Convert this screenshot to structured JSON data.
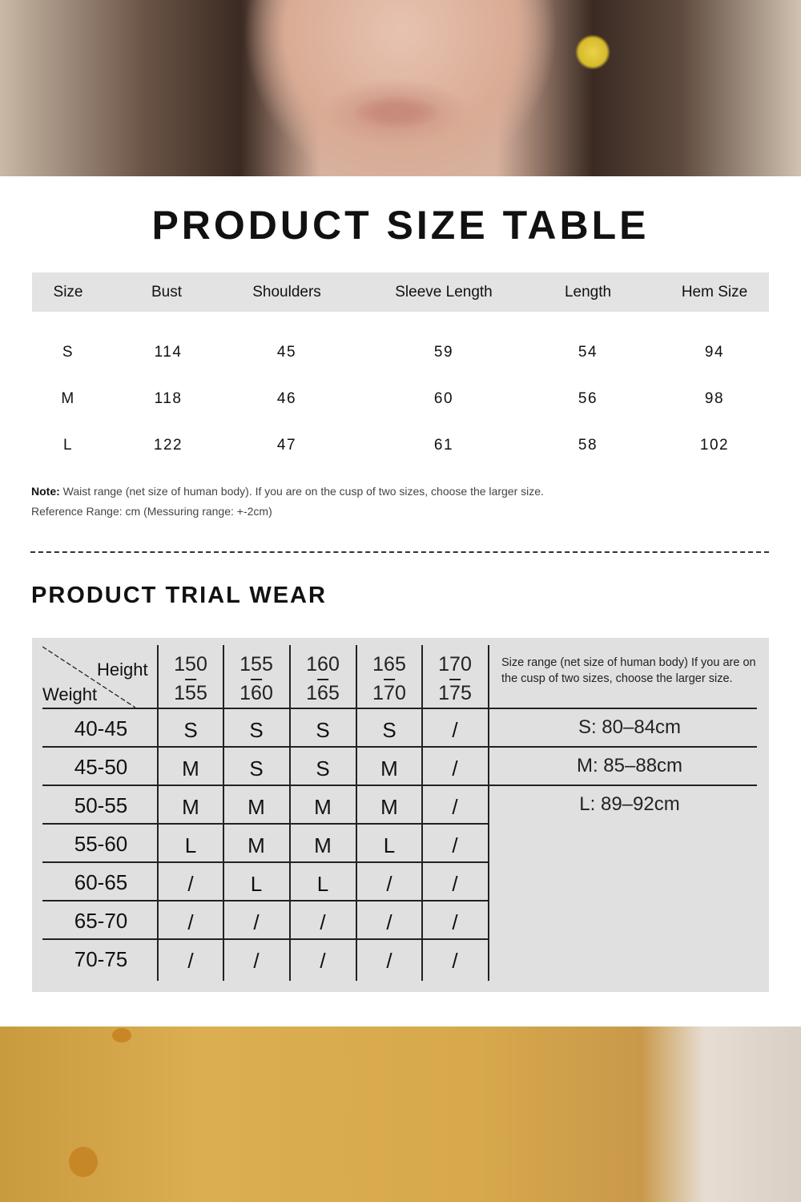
{
  "title": "PRODUCT SIZE TABLE",
  "size_table": {
    "headers": [
      "Size",
      "Bust",
      "Shoulders",
      "Sleeve Length",
      "Length",
      "Hem Size"
    ],
    "rows": [
      [
        "S",
        "114",
        "45",
        "59",
        "54",
        "94"
      ],
      [
        "M",
        "118",
        "46",
        "60",
        "56",
        "98"
      ],
      [
        "L",
        "122",
        "47",
        "61",
        "58",
        "102"
      ]
    ]
  },
  "note": {
    "label": "Note:",
    "text": " Waist range (net size of human body). If you are on the cusp of two sizes, choose the larger size.",
    "reference": "Reference Range: cm (Messuring range: +-2cm)"
  },
  "trial": {
    "title": "PRODUCT TRIAL WEAR",
    "corner_height": "Height",
    "corner_weight": "Weight",
    "heights": [
      [
        "150",
        "155"
      ],
      [
        "155",
        "160"
      ],
      [
        "160",
        "165"
      ],
      [
        "165",
        "170"
      ],
      [
        "170",
        "175"
      ]
    ],
    "info": "Size range (net size of human body) If you are on the cusp of two sizes, choose the larger size.",
    "rows": [
      {
        "weight": "40-45",
        "sizes": [
          "S",
          "S",
          "S",
          "S",
          "/"
        ]
      },
      {
        "weight": "45-50",
        "sizes": [
          "M",
          "S",
          "S",
          "M",
          "/"
        ]
      },
      {
        "weight": "50-55",
        "sizes": [
          "M",
          "M",
          "M",
          "M",
          "/"
        ]
      },
      {
        "weight": "55-60",
        "sizes": [
          "L",
          "M",
          "M",
          "L",
          "/"
        ]
      },
      {
        "weight": "60-65",
        "sizes": [
          "/",
          "L",
          "L",
          "/",
          "/"
        ]
      },
      {
        "weight": "65-70",
        "sizes": [
          "/",
          "/",
          "/",
          "/",
          "/"
        ]
      },
      {
        "weight": "70-75",
        "sizes": [
          "/",
          "/",
          "/",
          "/",
          "/"
        ]
      }
    ],
    "ranges": [
      "S: 80–84cm",
      "M: 85–88cm",
      "L: 89–92cm"
    ]
  }
}
